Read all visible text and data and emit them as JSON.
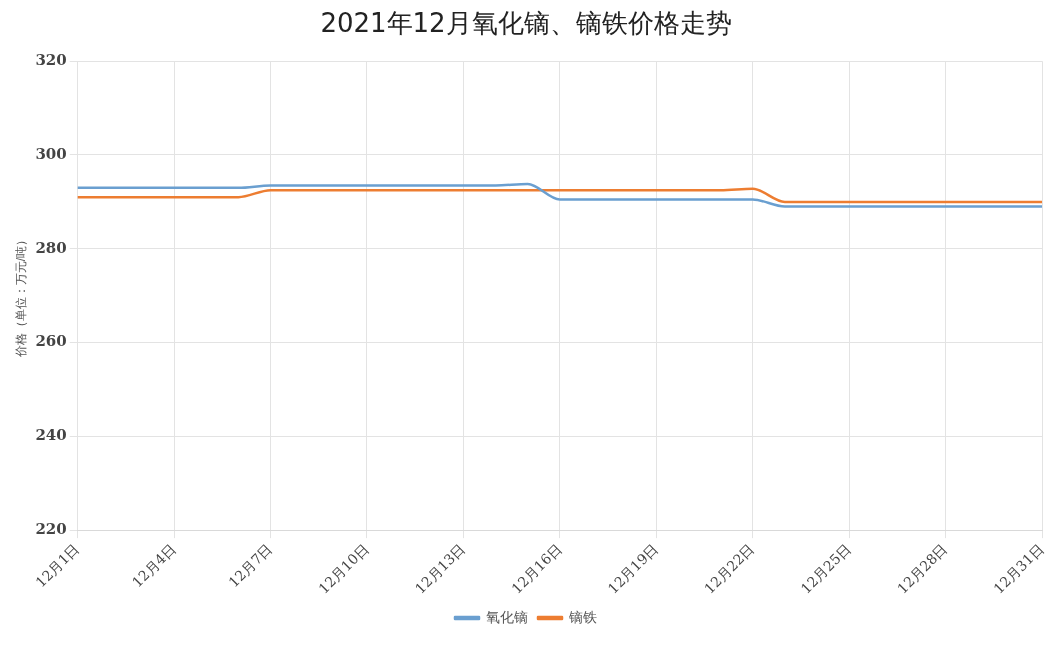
{
  "chart_data": {
    "type": "line",
    "title": "2021年12月氧化镝、镝铁价格走势",
    "ylabel": "价格（单位：万元/吨）",
    "categories": [
      "12月1日",
      null,
      null,
      "12月4日",
      null,
      null,
      "12月7日",
      null,
      null,
      "12月10日",
      null,
      null,
      "12月13日",
      null,
      null,
      "12月16日",
      null,
      null,
      "12月19日",
      null,
      null,
      "12月22日",
      null,
      null,
      "12月25日",
      null,
      null,
      "12月28日",
      null,
      null,
      "12月31日"
    ],
    "series": [
      {
        "name": "氧化镝",
        "color": "#6a9fd0",
        "values": [
          293,
          293,
          293,
          293,
          293,
          293,
          293.5,
          293.5,
          293.5,
          293.5,
          293.5,
          293.5,
          293.5,
          293.5,
          293.8,
          290.5,
          290.5,
          290.5,
          290.5,
          290.5,
          290.5,
          290.5,
          289,
          289,
          289,
          289,
          289,
          289,
          289,
          289,
          289
        ]
      },
      {
        "name": "镝铁",
        "color": "#ed7d31",
        "values": [
          291,
          291,
          291,
          291,
          291,
          291,
          292.5,
          292.5,
          292.5,
          292.5,
          292.5,
          292.5,
          292.5,
          292.5,
          292.5,
          292.5,
          292.5,
          292.5,
          292.5,
          292.5,
          292.5,
          292.8,
          290,
          290,
          290,
          290,
          290,
          290,
          290,
          290,
          290
        ]
      }
    ],
    "ylim": [
      220,
      320
    ],
    "yticks": [
      220,
      240,
      260,
      280,
      300,
      320
    ],
    "grid": true,
    "legend": "bottom",
    "marker": "none",
    "line_style": "solid"
  }
}
